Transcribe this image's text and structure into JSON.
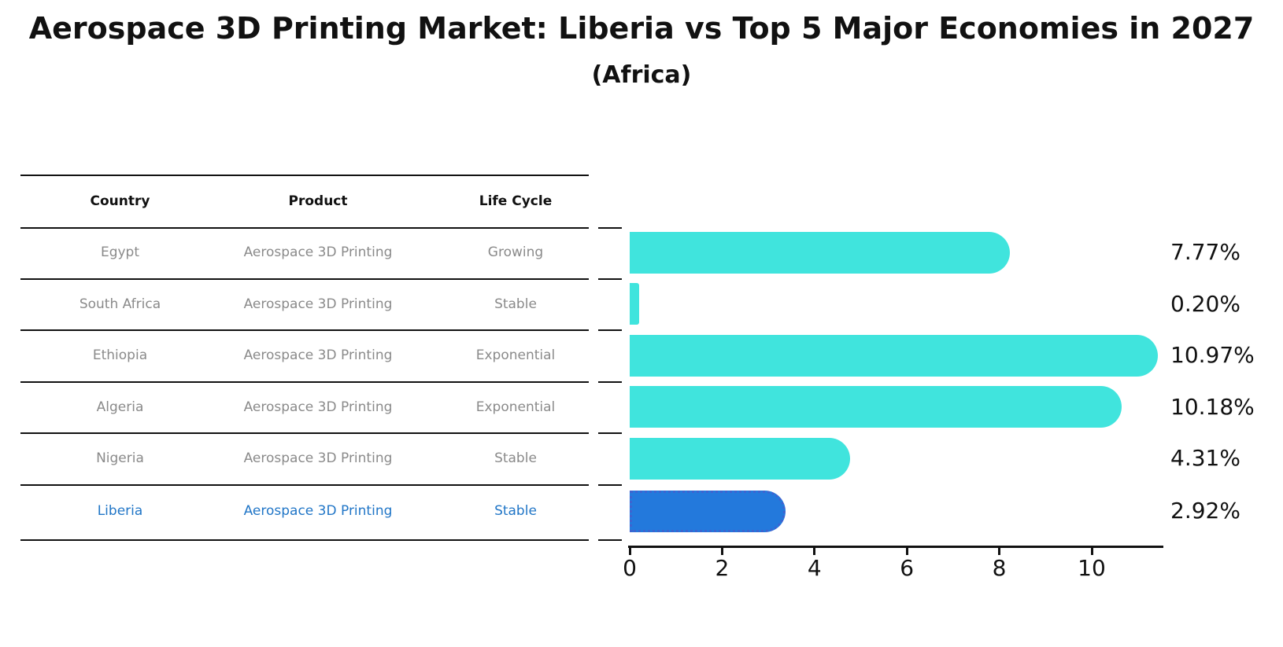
{
  "title": "Aerospace 3D Printing Market: Liberia vs Top 5 Major Economies in 2027",
  "subtitle": "(Africa)",
  "table": {
    "headers": [
      "Country",
      "Product",
      "Life Cycle"
    ],
    "rows": [
      {
        "country": "Egypt",
        "product": "Aerospace 3D Printing",
        "life_cycle": "Growing",
        "highlighted": false
      },
      {
        "country": "South Africa",
        "product": "Aerospace 3D Printing",
        "life_cycle": "Stable",
        "highlighted": false
      },
      {
        "country": "Ethiopia",
        "product": "Aerospace 3D Printing",
        "life_cycle": "Exponential",
        "highlighted": false
      },
      {
        "country": "Algeria",
        "product": "Aerospace 3D Printing",
        "life_cycle": "Exponential",
        "highlighted": false
      },
      {
        "country": "Nigeria",
        "product": "Aerospace 3D Printing",
        "life_cycle": "Stable",
        "highlighted": false
      },
      {
        "country": "Liberia",
        "product": "Aerospace 3D Printing",
        "life_cycle": "Stable",
        "highlighted": true
      }
    ]
  },
  "chart_data": {
    "type": "bar",
    "orientation": "horizontal",
    "title": "Aerospace 3D Printing Market: Liberia vs Top 5 Major Economies in 2027 (Africa)",
    "categories": [
      "Egypt",
      "South Africa",
      "Ethiopia",
      "Algeria",
      "Nigeria",
      "Liberia"
    ],
    "values": [
      7.77,
      0.2,
      10.97,
      10.18,
      4.31,
      2.92
    ],
    "value_labels": [
      "7.77%",
      "0.20%",
      "10.97%",
      "10.18%",
      "4.31%",
      "2.92%"
    ],
    "unit": "%",
    "xlim": [
      0,
      11.5
    ],
    "x_ticks": [
      0,
      2,
      4,
      6,
      8,
      10
    ],
    "grid": false,
    "legend": false,
    "highlight_category": "Liberia"
  },
  "colors": {
    "bar": "#40E4DD",
    "highlight_bar": "#2379DC",
    "highlight_bar_border": "#3E63D0",
    "highlight_text": "#2176c7",
    "table_text": "#8a8a8a",
    "header_text": "#111111",
    "line": "#111111"
  }
}
